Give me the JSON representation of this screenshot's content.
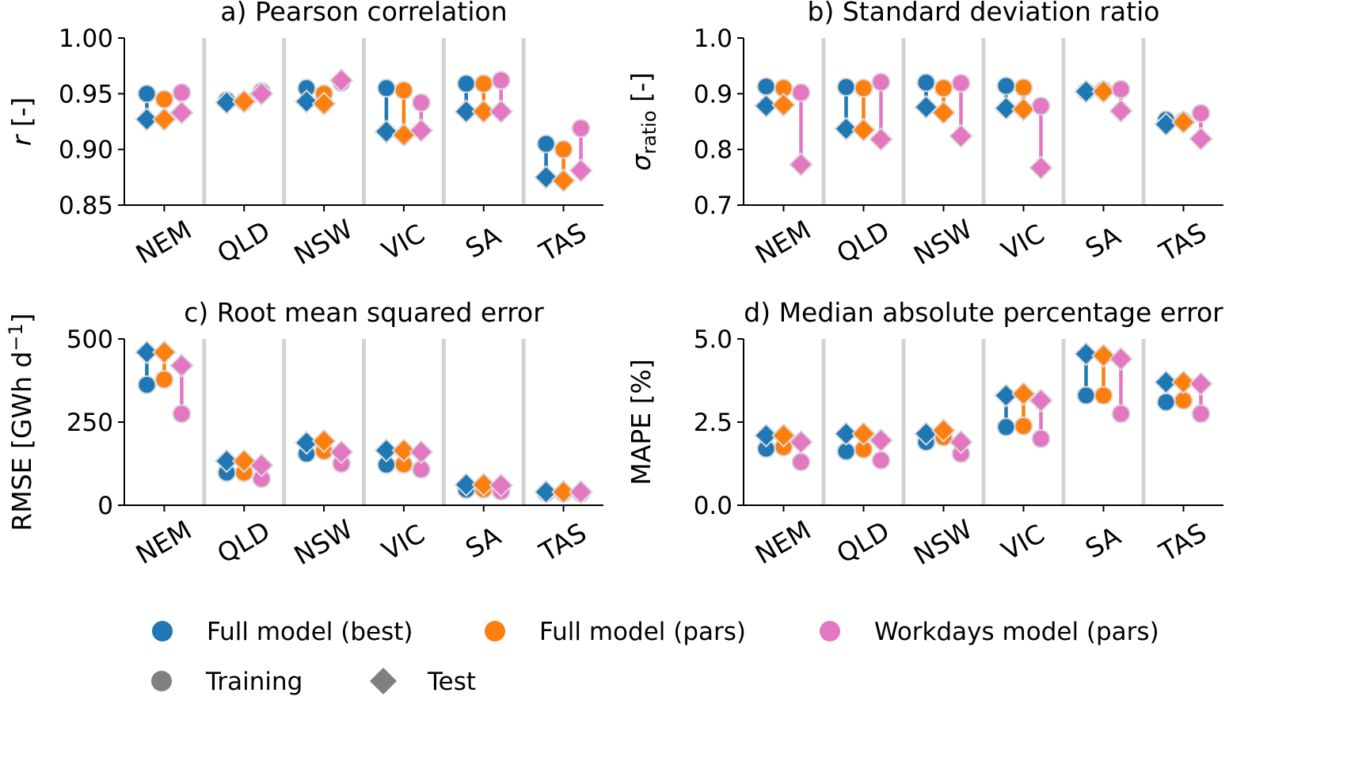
{
  "colors": {
    "best": "#1f77b4",
    "pars": "#ff7f0e",
    "workdays": "#e377c2",
    "training": "#808080",
    "test": "#808080",
    "separator": "#d3d3d3"
  },
  "legend": {
    "models": [
      {
        "key": "best",
        "label": "Full model (best)"
      },
      {
        "key": "pars",
        "label": "Full model (pars)"
      },
      {
        "key": "workdays",
        "label": "Workdays model (pars)"
      }
    ],
    "sets": [
      {
        "key": "training",
        "label": "Training",
        "marker": "circle"
      },
      {
        "key": "test",
        "label": "Test",
        "marker": "diamond"
      }
    ]
  },
  "chart_data": [
    {
      "type": "dot-range",
      "title": "a) Pearson correlation",
      "ylabel": "r [-]",
      "ylabel_parts": [
        {
          "text": "r",
          "italic": true
        },
        {
          "text": " [-]"
        }
      ],
      "ylim": [
        0.85,
        1.0
      ],
      "yticks": [
        "0.85",
        "0.90",
        "0.95",
        "1.00"
      ],
      "categories": [
        "NEM",
        "QLD",
        "NSW",
        "VIC",
        "SA",
        "TAS"
      ],
      "series": [
        {
          "name": "Full model (best)",
          "key": "best",
          "training": [
            0.95,
            0.944,
            0.955,
            0.955,
            0.959,
            0.905
          ],
          "test": [
            0.927,
            0.942,
            0.943,
            0.916,
            0.934,
            0.875
          ]
        },
        {
          "name": "Full model (pars)",
          "key": "pars",
          "training": [
            0.945,
            0.943,
            0.95,
            0.953,
            0.959,
            0.9
          ],
          "test": [
            0.927,
            0.943,
            0.941,
            0.913,
            0.934,
            0.872
          ]
        },
        {
          "name": "Workdays model (pars)",
          "key": "workdays",
          "training": [
            0.951,
            0.952,
            0.96,
            0.942,
            0.962,
            0.919
          ],
          "test": [
            0.933,
            0.95,
            0.962,
            0.917,
            0.934,
            0.881
          ]
        }
      ]
    },
    {
      "type": "dot-range",
      "title": "b) Standard deviation ratio",
      "ylabel": "σratio [-]",
      "ylabel_parts": [
        {
          "text": "σ",
          "italic": true
        },
        {
          "text": "ratio",
          "sub": true
        },
        {
          "text": " [-]"
        }
      ],
      "ylim": [
        0.7,
        1.0
      ],
      "yticks": [
        "0.7",
        "0.8",
        "0.9",
        "1.0"
      ],
      "categories": [
        "NEM",
        "QLD",
        "NSW",
        "VIC",
        "SA",
        "TAS"
      ],
      "series": [
        {
          "name": "Full model (best)",
          "key": "best",
          "training": [
            0.913,
            0.912,
            0.92,
            0.914,
            0.904,
            0.853
          ],
          "test": [
            0.878,
            0.837,
            0.876,
            0.874,
            0.904,
            0.845
          ]
        },
        {
          "name": "Full model (pars)",
          "key": "pars",
          "training": [
            0.91,
            0.91,
            0.91,
            0.911,
            0.906,
            0.851
          ],
          "test": [
            0.88,
            0.835,
            0.866,
            0.872,
            0.904,
            0.849
          ]
        },
        {
          "name": "Workdays model (pars)",
          "key": "workdays",
          "training": [
            0.902,
            0.921,
            0.919,
            0.878,
            0.908,
            0.865
          ],
          "test": [
            0.773,
            0.818,
            0.824,
            0.767,
            0.869,
            0.819
          ]
        }
      ]
    },
    {
      "type": "dot-range",
      "title": "c) Root mean squared error",
      "ylabel": "RMSE [GWh d−1]",
      "ylabel_parts": [
        {
          "text": "RMSE [GWh d"
        },
        {
          "text": "−1",
          "sup": true
        },
        {
          "text": "]"
        }
      ],
      "ylim": [
        0,
        500
      ],
      "yticks": [
        "0",
        "250",
        "500"
      ],
      "categories": [
        "NEM",
        "QLD",
        "NSW",
        "VIC",
        "SA",
        "TAS"
      ],
      "series": [
        {
          "name": "Full model (best)",
          "key": "best",
          "training": [
            362,
            98,
            155,
            122,
            47,
            37
          ],
          "test": [
            460,
            133,
            188,
            165,
            62,
            40
          ]
        },
        {
          "name": "Full model (pars)",
          "key": "pars",
          "training": [
            378,
            98,
            163,
            123,
            48,
            37
          ],
          "test": [
            460,
            133,
            193,
            165,
            62,
            40
          ]
        },
        {
          "name": "Workdays model (pars)",
          "key": "workdays",
          "training": [
            275,
            80,
            125,
            108,
            42,
            36
          ],
          "test": [
            420,
            120,
            160,
            160,
            60,
            40
          ]
        }
      ]
    },
    {
      "type": "dot-range",
      "title": "d) Median absolute percentage error",
      "ylabel": "MAPE [%]",
      "ylabel_parts": [
        {
          "text": "MAPE [%]"
        }
      ],
      "ylim": [
        0.0,
        5.0
      ],
      "yticks": [
        "0.0",
        "2.5",
        "5.0"
      ],
      "categories": [
        "NEM",
        "QLD",
        "NSW",
        "VIC",
        "SA",
        "TAS"
      ],
      "series": [
        {
          "name": "Full model (best)",
          "key": "best",
          "training": [
            1.7,
            1.62,
            1.9,
            2.35,
            3.3,
            3.1
          ],
          "test": [
            2.1,
            2.15,
            2.15,
            3.3,
            4.55,
            3.7
          ]
        },
        {
          "name": "Full model (pars)",
          "key": "pars",
          "training": [
            1.75,
            1.68,
            2.05,
            2.38,
            3.3,
            3.15
          ],
          "test": [
            2.1,
            2.15,
            2.25,
            3.35,
            4.5,
            3.7
          ]
        },
        {
          "name": "Workdays model (pars)",
          "key": "workdays",
          "training": [
            1.3,
            1.35,
            1.55,
            2.0,
            2.75,
            2.75
          ],
          "test": [
            1.9,
            1.95,
            1.9,
            3.15,
            4.4,
            3.65
          ]
        }
      ]
    }
  ]
}
